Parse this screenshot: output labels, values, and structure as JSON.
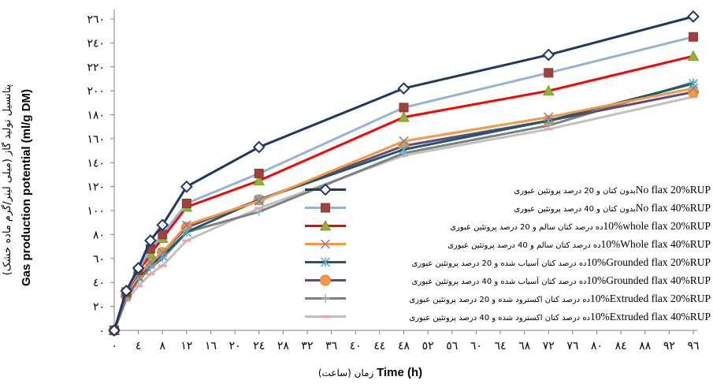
{
  "y_title_fa": "پتانسیل تولید گاز (میلی لیتر/گرم ماده خشک)",
  "y_title_en": "Gas production potential (ml/g DM)",
  "x_title_en": "Time (h)",
  "x_title_fa": "زمان (ساعت)",
  "chart_data": {
    "type": "line",
    "xlabel": "Time (h) زمان (ساعت)",
    "ylabel": "Gas production potential (ml/g DM)",
    "xlim": [
      0,
      96
    ],
    "ylim": [
      0,
      260
    ],
    "x_ticks": [
      0,
      4,
      8,
      12,
      16,
      20,
      24,
      28,
      32,
      36,
      40,
      44,
      48,
      52,
      56,
      60,
      64,
      68,
      72,
      76,
      80,
      84,
      88,
      92,
      96
    ],
    "x_tick_labels": [
      "٠",
      "٤",
      "٨",
      "١٢",
      "١٦",
      "٢٠",
      "٢٤",
      "٢٨",
      "٣٢",
      "٣٦",
      "٤٠",
      "٤٤",
      "٤٨",
      "٥٢",
      "٥٦",
      "٦٠",
      "٦٤",
      "٦٨",
      "٧٢",
      "٧٦",
      "٨٠",
      "٨٤",
      "٨٨",
      "٩٢",
      "٩٦"
    ],
    "y_ticks": [
      0,
      20,
      40,
      60,
      80,
      100,
      120,
      140,
      160,
      180,
      200,
      220,
      240,
      260
    ],
    "y_tick_labels": [
      "٠",
      "٢٠",
      "٤٠",
      "٦٠",
      "٨٠",
      "١٠٠",
      "١٢٠",
      "١٤٠",
      "١٦٠",
      "١٨٠",
      "٢٠٠",
      "٢٢٠",
      "٢٤٠",
      "٢٦٠"
    ],
    "grid": false,
    "legend_position": "center-right",
    "x": [
      0,
      2,
      4,
      6,
      8,
      12,
      24,
      48,
      72,
      96
    ],
    "series": [
      {
        "name": "No flax 20%RUP",
        "name_fa": "بدون کتان و 20 درصد پروتئین عبوری",
        "color": "#1f3864",
        "marker": "diamond-open",
        "values": [
          0,
          33,
          52,
          75,
          88,
          120,
          153,
          202,
          230,
          262
        ]
      },
      {
        "name": "No flax 40%RUP",
        "name_fa": "بدون کتان و 40 درصد پروتئین عبوری",
        "color": "#95b3d7",
        "marker": "square",
        "values": [
          0,
          32,
          50,
          68,
          80,
          106,
          131,
          186,
          215,
          245
        ]
      },
      {
        "name": "10%whole flax 20%RUP",
        "name_fa": "ده درصد کتان سالم و 20 درصد پروتئین عبوری",
        "color": "#ff0000",
        "marker": "triangle",
        "values": [
          0,
          31,
          49,
          64,
          77,
          103,
          125,
          178,
          200,
          229
        ]
      },
      {
        "name": "10%Whole flax 40%RUP",
        "name_fa": "ده درصد کتان سالم و 40 درصد پروتئین عبوری",
        "color": "#f79646",
        "marker": "x",
        "values": [
          0,
          30,
          45,
          57,
          65,
          88,
          108,
          158,
          178,
          202
        ]
      },
      {
        "name": "10%Grounded flax 20%RUP",
        "name_fa": "ده درصد کتان آسیاب شده و 20 درصد پروتئین عبوری",
        "color": "#215968",
        "marker": "asterisk",
        "values": [
          0,
          29,
          44,
          55,
          62,
          82,
          109,
          151,
          175,
          206
        ]
      },
      {
        "name": "10%Grounded flax 40%RUP",
        "name_fa": "ده درصد کتان آسیاب شده و 40 درصد پروتئین عبوری",
        "color": "#604a7b",
        "marker": "circle",
        "values": [
          0,
          29,
          46,
          57,
          65,
          86,
          109,
          154,
          175,
          199
        ]
      },
      {
        "name": "10%Extruded flax 20%RUP",
        "name_fa": "ده درصد کتان اکسترود شده و 20 درصد پروتئین عبوری",
        "color": "#7f7f7f",
        "marker": "plus",
        "values": [
          0,
          27,
          42,
          52,
          60,
          82,
          99,
          148,
          171,
          207
        ]
      },
      {
        "name": "10%Extruded flax 40%RUP",
        "name_fa": "ده درصد کتان اکسترود شده و 40 درصد پروتئین عبوری",
        "color": "#c0c0c0",
        "marker": "dash",
        "values": [
          0,
          25,
          37,
          47,
          54,
          75,
          102,
          146,
          168,
          195
        ]
      }
    ]
  }
}
